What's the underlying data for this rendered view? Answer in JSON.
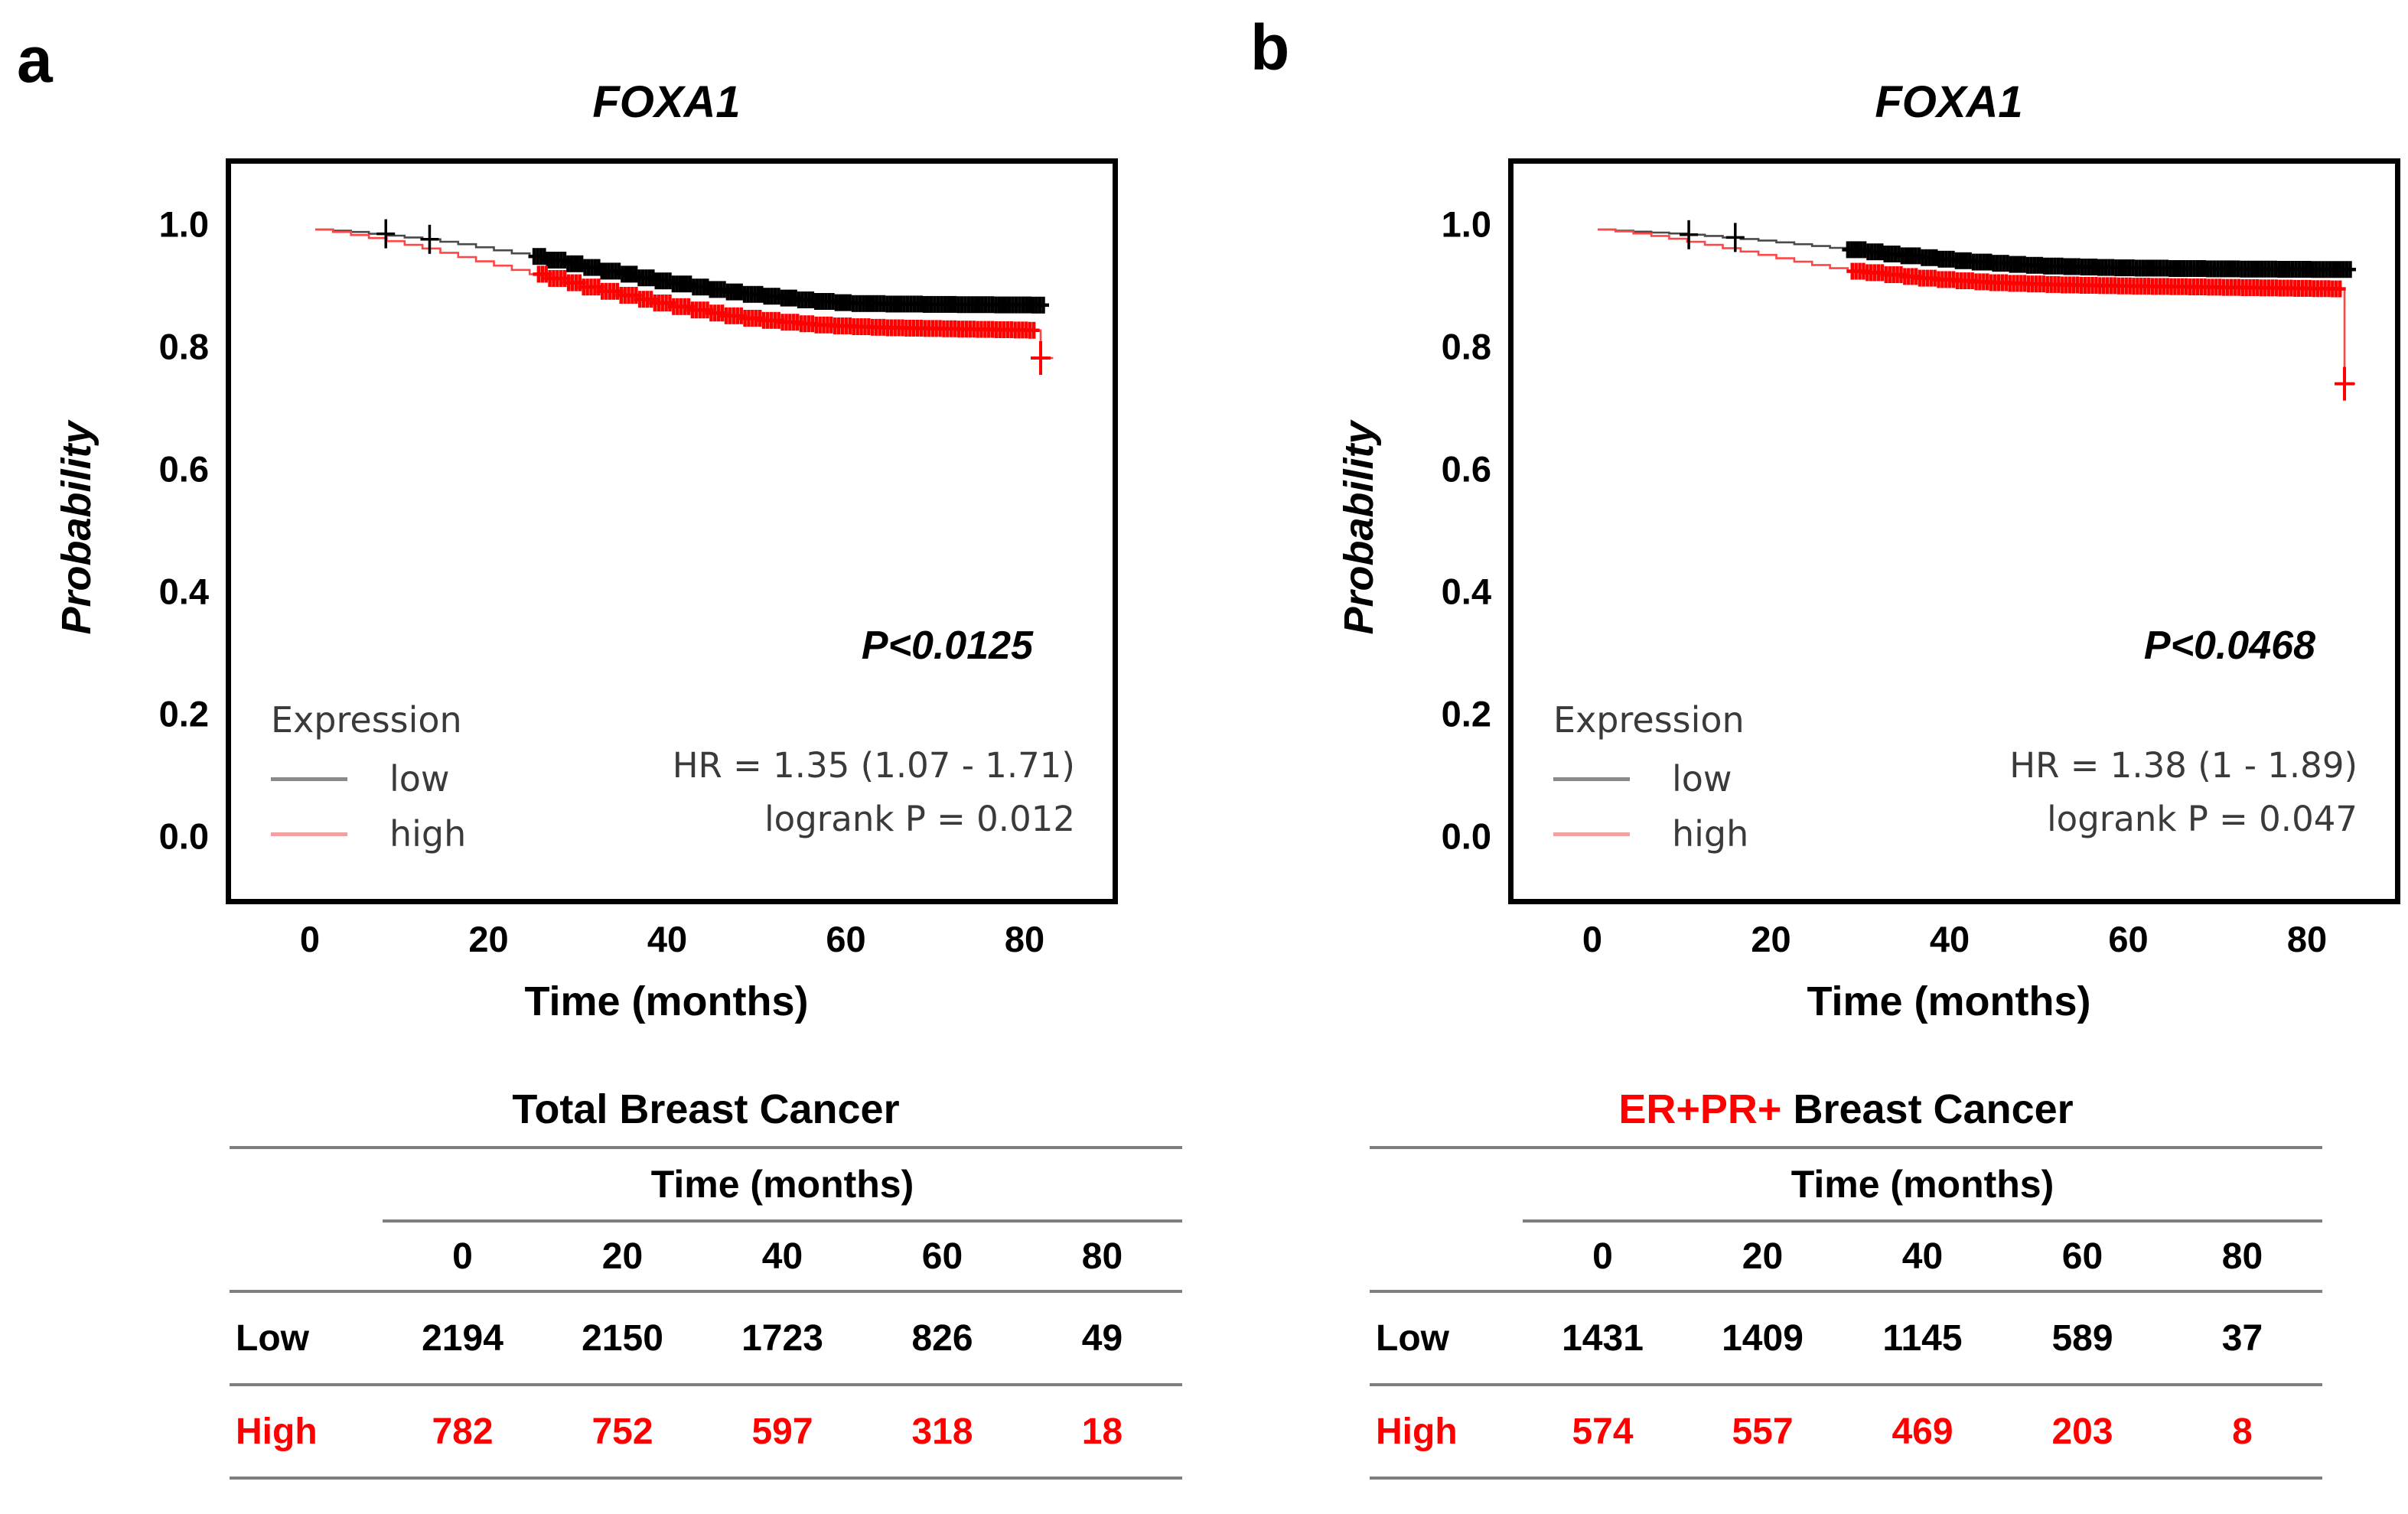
{
  "figure": {
    "background": "#ffffff"
  },
  "chart_data": [
    {
      "type": "line",
      "subtype": "kaplan-meier-survival",
      "panel_label": "a",
      "title": "FOXA1",
      "xlabel": "Time (months)",
      "ylabel": "Probability",
      "xticks": [
        "0",
        "20",
        "40",
        "60",
        "80"
      ],
      "yticks": [
        "1.0",
        "0.8",
        "0.6",
        "0.4",
        "0.2",
        "0.0"
      ],
      "xlim_months": [
        -9.4,
        89.2
      ],
      "ylim": [
        -0.1,
        1.11
      ],
      "grid": false,
      "legend_position": "lower-left",
      "pvalue_text": "P<0.0125",
      "hr_text": "HR = 1.35 (1.07 - 1.71)",
      "logrank_text": "logrank P = 0.012",
      "legend": {
        "title": "Expression",
        "items": [
          {
            "label": "low",
            "color": "#8a8a8a"
          },
          {
            "label": "high",
            "color": "#f2a1a1"
          }
        ]
      },
      "series": [
        {
          "name": "low",
          "line_color": "#4a4a4a",
          "marker_color": "#000000",
          "points": [
            [
              0,
              1.0
            ],
            [
              2,
              0.998
            ],
            [
              4,
              0.996
            ],
            [
              6,
              0.993
            ],
            [
              8,
              0.99
            ],
            [
              10,
              0.987
            ],
            [
              12,
              0.984
            ],
            [
              14,
              0.98
            ],
            [
              16,
              0.976
            ],
            [
              18,
              0.971
            ],
            [
              20,
              0.966
            ],
            [
              22,
              0.961
            ],
            [
              24,
              0.956
            ],
            [
              26,
              0.95
            ],
            [
              28,
              0.944
            ],
            [
              30,
              0.938
            ],
            [
              32,
              0.932
            ],
            [
              34,
              0.927
            ],
            [
              36,
              0.921
            ],
            [
              38,
              0.916
            ],
            [
              40,
              0.911
            ],
            [
              42,
              0.906
            ],
            [
              44,
              0.902
            ],
            [
              46,
              0.898
            ],
            [
              48,
              0.894
            ],
            [
              50,
              0.891
            ],
            [
              52,
              0.888
            ],
            [
              54,
              0.885
            ],
            [
              56,
              0.8825
            ],
            [
              58,
              0.8805
            ],
            [
              60,
              0.879
            ],
            [
              64,
              0.8782
            ],
            [
              68,
              0.8776
            ],
            [
              72,
              0.8772
            ],
            [
              76,
              0.8768
            ],
            [
              80,
              0.8765
            ],
            [
              82,
              0.876
            ]
          ],
          "censor_big": [
            7.9,
            12.8
          ],
          "censor_dense": [
            24.5,
            81.5,
            0.38
          ]
        },
        {
          "name": "high",
          "line_color": "#ff4545",
          "marker_color": "#ff0000",
          "points": [
            [
              0,
              1.0
            ],
            [
              2,
              0.996
            ],
            [
              4,
              0.991
            ],
            [
              6,
              0.986
            ],
            [
              8,
              0.981
            ],
            [
              10,
              0.975
            ],
            [
              12,
              0.969
            ],
            [
              14,
              0.962
            ],
            [
              16,
              0.955
            ],
            [
              18,
              0.948
            ],
            [
              20,
              0.941
            ],
            [
              22,
              0.934
            ],
            [
              24,
              0.927
            ],
            [
              26,
              0.92
            ],
            [
              28,
              0.913
            ],
            [
              30,
              0.906
            ],
            [
              32,
              0.899
            ],
            [
              34,
              0.8925
            ],
            [
              36,
              0.886
            ],
            [
              38,
              0.88
            ],
            [
              40,
              0.874
            ],
            [
              42,
              0.8685
            ],
            [
              44,
              0.8635
            ],
            [
              46,
              0.859
            ],
            [
              48,
              0.855
            ],
            [
              50,
              0.8515
            ],
            [
              52,
              0.8485
            ],
            [
              54,
              0.846
            ],
            [
              56,
              0.844
            ],
            [
              58,
              0.8425
            ],
            [
              60,
              0.8412
            ],
            [
              62,
              0.8402
            ],
            [
              64,
              0.8394
            ],
            [
              66,
              0.8388
            ],
            [
              68,
              0.8383
            ],
            [
              70,
              0.8378
            ],
            [
              72,
              0.8373
            ],
            [
              74,
              0.8368
            ],
            [
              76,
              0.8363
            ],
            [
              78,
              0.8358
            ],
            [
              80,
              0.8353
            ],
            [
              81.2,
              0.835
            ]
          ],
          "censor_big": [],
          "censor_dense": [
            25,
            80.8,
            0.42
          ],
          "drop": {
            "t": 81.2,
            "to": 0.79,
            "tail": 82.6
          }
        }
      ],
      "table": {
        "title_parts": [
          {
            "text": "Total Breast Cancer",
            "color": "#000000"
          }
        ],
        "header": "Time (months)",
        "columns": [
          "0",
          "20",
          "40",
          "60",
          "80"
        ],
        "rows": [
          {
            "label": "Low",
            "color": "#000000",
            "values": [
              "2194",
              "2150",
              "1723",
              "826",
              "49"
            ]
          },
          {
            "label": "High",
            "color": "#ff0000",
            "values": [
              "782",
              "752",
              "597",
              "318",
              "18"
            ]
          }
        ]
      }
    },
    {
      "type": "line",
      "subtype": "kaplan-meier-survival",
      "panel_label": "b",
      "title": "FOXA1",
      "xlabel": "Time (months)",
      "ylabel": "Probability",
      "xticks": [
        "0",
        "20",
        "40",
        "60",
        "80"
      ],
      "yticks": [
        "1.0",
        "0.8",
        "0.6",
        "0.4",
        "0.2",
        "0.0"
      ],
      "xlim_months": [
        -9.4,
        89.2
      ],
      "ylim": [
        -0.1,
        1.11
      ],
      "grid": false,
      "legend_position": "lower-left",
      "pvalue_text": "P<0.0468",
      "hr_text": "HR = 1.38 (1 - 1.89)",
      "logrank_text": "logrank P = 0.047",
      "legend": {
        "title": "Expression",
        "items": [
          {
            "label": "low",
            "color": "#8a8a8a"
          },
          {
            "label": "high",
            "color": "#f2a1a1"
          }
        ]
      },
      "series": [
        {
          "name": "low",
          "line_color": "#4a4a4a",
          "marker_color": "#000000",
          "points": [
            [
              0,
              1.0
            ],
            [
              2,
              0.998
            ],
            [
              4,
              0.9965
            ],
            [
              6,
              0.995
            ],
            [
              8,
              0.9935
            ],
            [
              10,
              0.9915
            ],
            [
              12,
              0.9895
            ],
            [
              14,
              0.987
            ],
            [
              16,
              0.9845
            ],
            [
              18,
              0.982
            ],
            [
              20,
              0.979
            ],
            [
              22,
              0.976
            ],
            [
              24,
              0.973
            ],
            [
              26,
              0.97
            ],
            [
              28,
              0.967
            ],
            [
              30,
              0.9635
            ],
            [
              32,
              0.96
            ],
            [
              34,
              0.957
            ],
            [
              36,
              0.954
            ],
            [
              38,
              0.9515
            ],
            [
              40,
              0.949
            ],
            [
              42,
              0.9468
            ],
            [
              44,
              0.9448
            ],
            [
              46,
              0.943
            ],
            [
              48,
              0.9415
            ],
            [
              50,
              0.9403
            ],
            [
              52,
              0.9394
            ],
            [
              54,
              0.9387
            ],
            [
              56,
              0.938
            ],
            [
              58,
              0.9374
            ],
            [
              60,
              0.9369
            ],
            [
              64,
              0.9362
            ],
            [
              68,
              0.9357
            ],
            [
              72,
              0.9353
            ],
            [
              76,
              0.935
            ],
            [
              80,
              0.9347
            ],
            [
              84.5,
              0.9345
            ]
          ],
          "censor_big": [
            10.2,
            15.4
          ],
          "censor_dense": [
            28,
            84.3,
            0.38
          ]
        },
        {
          "name": "high",
          "line_color": "#ff4545",
          "marker_color": "#ff0000",
          "points": [
            [
              0,
              1.0
            ],
            [
              2,
              0.997
            ],
            [
              4,
              0.9935
            ],
            [
              6,
              0.9895
            ],
            [
              8,
              0.985
            ],
            [
              10,
              0.98
            ],
            [
              12,
              0.975
            ],
            [
              14,
              0.9695
            ],
            [
              16,
              0.964
            ],
            [
              18,
              0.9585
            ],
            [
              20,
              0.953
            ],
            [
              22,
              0.9475
            ],
            [
              24,
              0.942
            ],
            [
              26,
              0.9368
            ],
            [
              28,
              0.9318
            ],
            [
              30,
              0.9295
            ],
            [
              32,
              0.9262
            ],
            [
              34,
              0.9232
            ],
            [
              36,
              0.9205
            ],
            [
              38,
              0.9182
            ],
            [
              40,
              0.9162
            ],
            [
              42,
              0.9145
            ],
            [
              44,
              0.9131
            ],
            [
              46,
              0.912
            ],
            [
              48,
              0.911
            ],
            [
              50,
              0.9101
            ],
            [
              52,
              0.9094
            ],
            [
              54,
              0.9088
            ],
            [
              56,
              0.9083
            ],
            [
              58,
              0.9078
            ],
            [
              60,
              0.9074
            ],
            [
              62,
              0.907
            ],
            [
              64,
              0.9066
            ],
            [
              66,
              0.9062
            ],
            [
              68,
              0.9058
            ],
            [
              70,
              0.9054
            ],
            [
              72,
              0.905
            ],
            [
              74,
              0.9046
            ],
            [
              76,
              0.9042
            ],
            [
              78,
              0.9038
            ],
            [
              80,
              0.9034
            ],
            [
              82,
              0.903
            ],
            [
              83.6,
              0.9028
            ]
          ],
          "censor_big": [],
          "censor_dense": [
            28.5,
            83.3,
            0.42
          ],
          "drop": {
            "t": 83.6,
            "to": 0.748,
            "tail": 84.8
          }
        }
      ],
      "table": {
        "title_parts": [
          {
            "text": "ER+PR+",
            "color": "#ff0000"
          },
          {
            "text": " Breast Cancer",
            "color": "#000000"
          }
        ],
        "header": "Time (months)",
        "columns": [
          "0",
          "20",
          "40",
          "60",
          "80"
        ],
        "rows": [
          {
            "label": "Low",
            "color": "#000000",
            "values": [
              "1431",
              "1409",
              "1145",
              "589",
              "37"
            ]
          },
          {
            "label": "High",
            "color": "#ff0000",
            "values": [
              "574",
              "557",
              "469",
              "203",
              "8"
            ]
          }
        ]
      }
    }
  ]
}
